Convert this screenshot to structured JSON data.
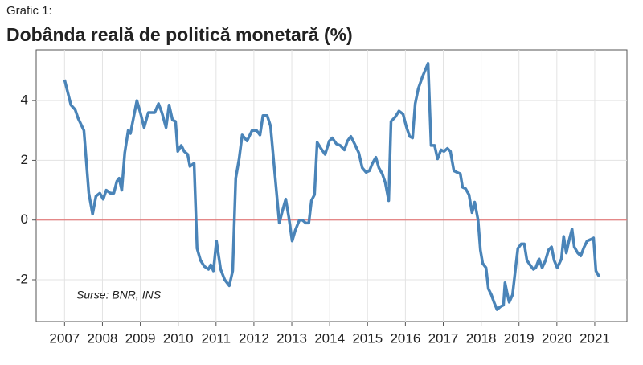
{
  "chart_data": {
    "type": "line",
    "subtitle": "Grafic 1:",
    "title": "Dobânda reală de politică monetară (%)",
    "annotation": "Surse: BNR, INS",
    "xlim": [
      2006.25,
      2021.85
    ],
    "xticks": [
      2007,
      2008,
      2009,
      2010,
      2011,
      2012,
      2013,
      2014,
      2015,
      2016,
      2017,
      2018,
      2019,
      2020,
      2021
    ],
    "ylim": [
      -3.4,
      5.7
    ],
    "yticks": [
      -2,
      0,
      2,
      4
    ],
    "grid": true,
    "reference_line": 0,
    "reference_color": "#e06666",
    "series": [
      {
        "color": "#4a84b8",
        "x": [
          2007.0,
          2007.17,
          2007.28,
          2007.36,
          2007.51,
          2007.64,
          2007.74,
          2007.83,
          2007.93,
          2008.02,
          2008.1,
          2008.21,
          2008.3,
          2008.38,
          2008.44,
          2008.51,
          2008.59,
          2008.68,
          2008.74,
          2008.91,
          2009.0,
          2009.1,
          2009.21,
          2009.38,
          2009.48,
          2009.57,
          2009.68,
          2009.76,
          2009.85,
          2009.93,
          2009.99,
          2010.08,
          2010.16,
          2010.25,
          2010.31,
          2010.42,
          2010.5,
          2010.59,
          2010.69,
          2010.8,
          2010.86,
          2010.93,
          2011.01,
          2011.12,
          2011.23,
          2011.35,
          2011.44,
          2011.52,
          2011.61,
          2011.69,
          2011.82,
          2011.95,
          2012.07,
          2012.16,
          2012.24,
          2012.35,
          2012.44,
          2012.56,
          2012.67,
          2012.75,
          2012.84,
          2012.92,
          2013.01,
          2013.09,
          2013.2,
          2013.28,
          2013.37,
          2013.45,
          2013.52,
          2013.6,
          2013.67,
          2013.77,
          2013.88,
          2013.99,
          2014.07,
          2014.18,
          2014.28,
          2014.39,
          2014.47,
          2014.56,
          2014.66,
          2014.77,
          2014.86,
          2014.96,
          2015.05,
          2015.13,
          2015.22,
          2015.3,
          2015.39,
          2015.47,
          2015.56,
          2015.62,
          2015.73,
          2015.83,
          2015.94,
          2016.02,
          2016.11,
          2016.19,
          2016.26,
          2016.34,
          2016.45,
          2016.6,
          2016.68,
          2016.77,
          2016.85,
          2016.94,
          2017.02,
          2017.11,
          2017.19,
          2017.28,
          2017.36,
          2017.45,
          2017.51,
          2017.59,
          2017.68,
          2017.76,
          2017.83,
          2017.92,
          2017.98,
          2018.04,
          2018.13,
          2018.19,
          2018.27,
          2018.34,
          2018.42,
          2018.51,
          2018.59,
          2018.63,
          2018.68,
          2018.74,
          2018.83,
          2018.91,
          2018.97,
          2019.06,
          2019.14,
          2019.21,
          2019.29,
          2019.38,
          2019.44,
          2019.53,
          2019.61,
          2019.7,
          2019.78,
          2019.86,
          2019.93,
          2020.01,
          2020.12,
          2020.18,
          2020.25,
          2020.31,
          2020.4,
          2020.46,
          2020.55,
          2020.63,
          2020.72,
          2020.8,
          2020.89,
          2020.97,
          2021.03,
          2021.12
        ],
        "values": [
          4.7,
          3.85,
          3.7,
          3.4,
          3.0,
          0.9,
          0.2,
          0.8,
          0.9,
          0.7,
          1.0,
          0.9,
          0.9,
          1.3,
          1.4,
          1.0,
          2.25,
          3.0,
          2.9,
          4.0,
          3.6,
          3.1,
          3.6,
          3.6,
          3.9,
          3.6,
          3.1,
          3.85,
          3.35,
          3.3,
          2.3,
          2.5,
          2.3,
          2.2,
          1.8,
          1.9,
          -0.95,
          -1.35,
          -1.55,
          -1.65,
          -1.5,
          -1.7,
          -0.7,
          -1.65,
          -2.0,
          -2.2,
          -1.7,
          1.4,
          2.05,
          2.85,
          2.65,
          3.0,
          3.0,
          2.85,
          3.5,
          3.5,
          3.15,
          1.45,
          -0.1,
          0.3,
          0.7,
          0.1,
          -0.7,
          -0.35,
          0,
          0,
          -0.1,
          -0.1,
          0.65,
          0.85,
          2.6,
          2.4,
          2.2,
          2.65,
          2.75,
          2.55,
          2.5,
          2.35,
          2.65,
          2.8,
          2.55,
          2.25,
          1.75,
          1.6,
          1.65,
          1.9,
          2.1,
          1.75,
          1.55,
          1.25,
          0.65,
          3.3,
          3.45,
          3.65,
          3.55,
          3.15,
          2.8,
          2.75,
          3.9,
          4.4,
          4.8,
          5.25,
          2.5,
          2.5,
          2.05,
          2.35,
          2.3,
          2.4,
          2.3,
          1.65,
          1.6,
          1.55,
          1.1,
          1.05,
          0.85,
          0.25,
          0.6,
          0,
          -1.0,
          -1.45,
          -1.6,
          -2.3,
          -2.5,
          -2.75,
          -3.0,
          -2.9,
          -2.85,
          -2.1,
          -2.4,
          -2.75,
          -2.5,
          -1.6,
          -0.95,
          -0.8,
          -0.8,
          -1.35,
          -1.5,
          -1.65,
          -1.6,
          -1.3,
          -1.6,
          -1.35,
          -1.0,
          -0.9,
          -1.35,
          -1.6,
          -1.3,
          -0.55,
          -1.1,
          -0.75,
          -0.3,
          -0.9,
          -1.1,
          -1.2,
          -0.9,
          -0.7,
          -0.65,
          -0.6,
          -1.7,
          -1.9
        ]
      }
    ]
  }
}
